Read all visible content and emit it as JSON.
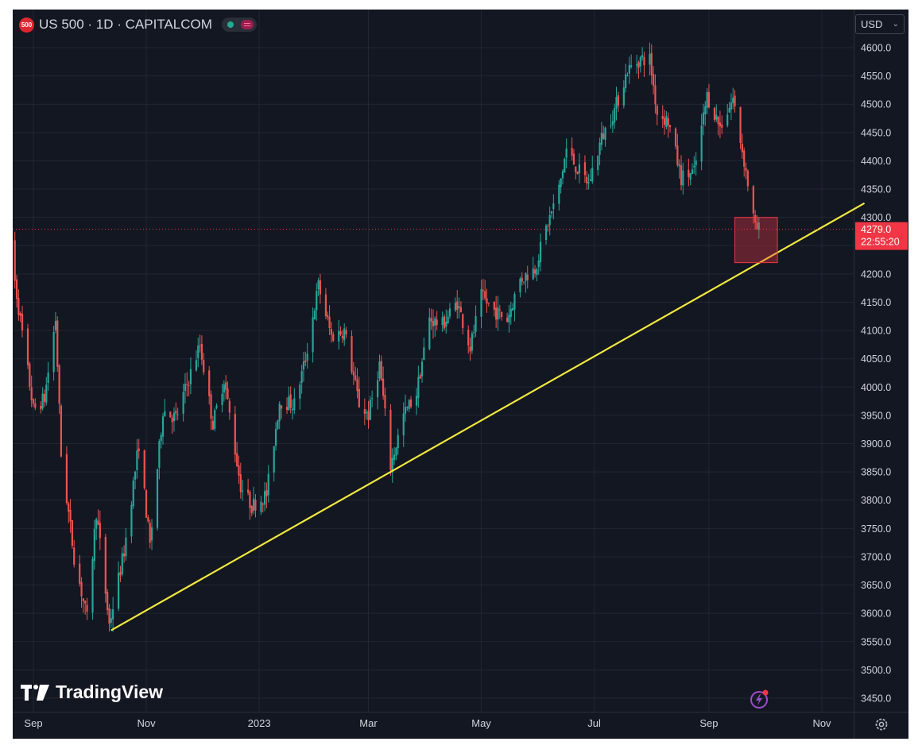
{
  "header": {
    "symbol_badge": "500",
    "title": "US 500 · 1D · CAPITALCOM"
  },
  "currency_select": {
    "value": "USD"
  },
  "logo_text": "TradingView",
  "colors": {
    "background": "#131722",
    "grid": "#232632",
    "up": "#26a69a",
    "down": "#ef5350",
    "trendline": "#f2e83c",
    "axis_text": "#d1d4dc",
    "price_tag": "#f23645"
  },
  "icons": [
    "settings-gear-icon",
    "lightning-alert-icon",
    "tradingview-logo-icon",
    "chevron-down-icon"
  ],
  "chart_data": {
    "type": "candlestick",
    "title": "US 500 · 1D · CAPITALCOM",
    "y_axis": {
      "ticks": [
        "4600.0",
        "4550.0",
        "4500.0",
        "4450.0",
        "4400.0",
        "4350.0",
        "4300.0",
        "4250.0",
        "4200.0",
        "4150.0",
        "4100.0",
        "4050.0",
        "4000.0",
        "3950.0",
        "3900.0",
        "3850.0",
        "3800.0",
        "3750.0",
        "3700.0",
        "3650.0",
        "3600.0",
        "3550.0",
        "3500.0",
        "3450.0"
      ],
      "range": [
        3430,
        4625
      ]
    },
    "x_axis": {
      "ticks": [
        "Sep",
        "Nov",
        "2023",
        "Mar",
        "May",
        "Jul",
        "Sep",
        "Nov"
      ]
    },
    "current_price": {
      "value": "4279.0",
      "countdown": "22:55:20"
    },
    "price_path": [
      [
        "2022-08-18",
        4280
      ],
      [
        "2022-08-24",
        4140
      ],
      [
        "2022-09-01",
        3960
      ],
      [
        "2022-09-07",
        3980
      ],
      [
        "2022-09-13",
        4120
      ],
      [
        "2022-09-16",
        3880
      ],
      [
        "2022-09-23",
        3700
      ],
      [
        "2022-09-30",
        3590
      ],
      [
        "2022-10-05",
        3780
      ],
      [
        "2022-10-12",
        3580
      ],
      [
        "2022-10-20",
        3710
      ],
      [
        "2022-10-28",
        3900
      ],
      [
        "2022-11-03",
        3720
      ],
      [
        "2022-11-10",
        3960
      ],
      [
        "2022-11-17",
        3945
      ],
      [
        "2022-11-25",
        4025
      ],
      [
        "2022-11-30",
        4075
      ],
      [
        "2022-12-07",
        3935
      ],
      [
        "2022-12-13",
        4015
      ],
      [
        "2022-12-22",
        3825
      ],
      [
        "2022-12-28",
        3790
      ],
      [
        "2023-01-05",
        3810
      ],
      [
        "2023-01-12",
        3975
      ],
      [
        "2023-01-20",
        3970
      ],
      [
        "2023-01-26",
        4050
      ],
      [
        "2023-02-02",
        4180
      ],
      [
        "2023-02-09",
        4090
      ],
      [
        "2023-02-16",
        4100
      ],
      [
        "2023-02-24",
        3970
      ],
      [
        "2023-03-01",
        3950
      ],
      [
        "2023-03-07",
        4040
      ],
      [
        "2023-03-13",
        3860
      ],
      [
        "2023-03-20",
        3950
      ],
      [
        "2023-03-27",
        3990
      ],
      [
        "2023-04-03",
        4120
      ],
      [
        "2023-04-10",
        4110
      ],
      [
        "2023-04-18",
        4150
      ],
      [
        "2023-04-25",
        4070
      ],
      [
        "2023-05-01",
        4160
      ],
      [
        "2023-05-08",
        4135
      ],
      [
        "2023-05-15",
        4120
      ],
      [
        "2023-05-22",
        4190
      ],
      [
        "2023-05-30",
        4210
      ],
      [
        "2023-06-05",
        4280
      ],
      [
        "2023-06-12",
        4350
      ],
      [
        "2023-06-16",
        4420
      ],
      [
        "2023-06-22",
        4385
      ],
      [
        "2023-06-28",
        4360
      ],
      [
        "2023-07-05",
        4440
      ],
      [
        "2023-07-12",
        4490
      ],
      [
        "2023-07-19",
        4560
      ],
      [
        "2023-07-26",
        4580
      ],
      [
        "2023-07-31",
        4580
      ],
      [
        "2023-08-04",
        4485
      ],
      [
        "2023-08-10",
        4470
      ],
      [
        "2023-08-17",
        4370
      ],
      [
        "2023-08-24",
        4380
      ],
      [
        "2023-08-31",
        4515
      ],
      [
        "2023-09-07",
        4460
      ],
      [
        "2023-09-14",
        4510
      ],
      [
        "2023-09-20",
        4400
      ],
      [
        "2023-09-26",
        4280
      ],
      [
        "2023-09-28",
        4279
      ]
    ],
    "trendline": {
      "from": [
        "2022-10-13",
        3570
      ],
      "to": [
        "2023-11-24",
        4325
      ]
    },
    "highlight_box": {
      "x": [
        "2023-09-15",
        "2023-10-08"
      ],
      "y": [
        4220,
        4300
      ]
    }
  }
}
